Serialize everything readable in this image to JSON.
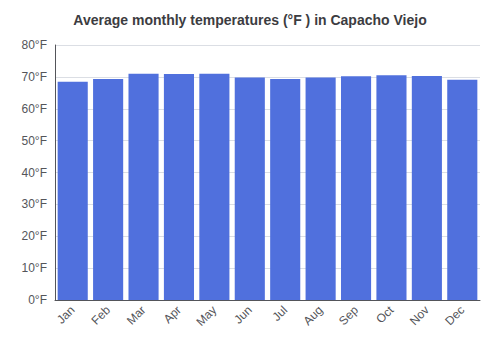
{
  "chart_data": {
    "type": "bar",
    "title": "Average monthly temperatures (°F ) in Capacho Viejo",
    "categories": [
      "Jan",
      "Feb",
      "Mar",
      "Apr",
      "May",
      "Jun",
      "Jul",
      "Aug",
      "Sep",
      "Oct",
      "Nov",
      "Dec"
    ],
    "values": [
      68.5,
      69.3,
      71.0,
      70.9,
      71.0,
      69.8,
      69.3,
      69.8,
      70.2,
      70.5,
      70.3,
      69.1
    ],
    "ylim": [
      0,
      80
    ],
    "yticks": [
      {
        "value": 0,
        "label": "0°F"
      },
      {
        "value": 10,
        "label": "10°F"
      },
      {
        "value": 20,
        "label": "20°F"
      },
      {
        "value": 30,
        "label": "30°F"
      },
      {
        "value": 40,
        "label": "40°F"
      },
      {
        "value": 50,
        "label": "50°F"
      },
      {
        "value": 60,
        "label": "60°F"
      },
      {
        "value": 70,
        "label": "70°F"
      },
      {
        "value": 80,
        "label": "80°F"
      }
    ],
    "grid": true
  }
}
